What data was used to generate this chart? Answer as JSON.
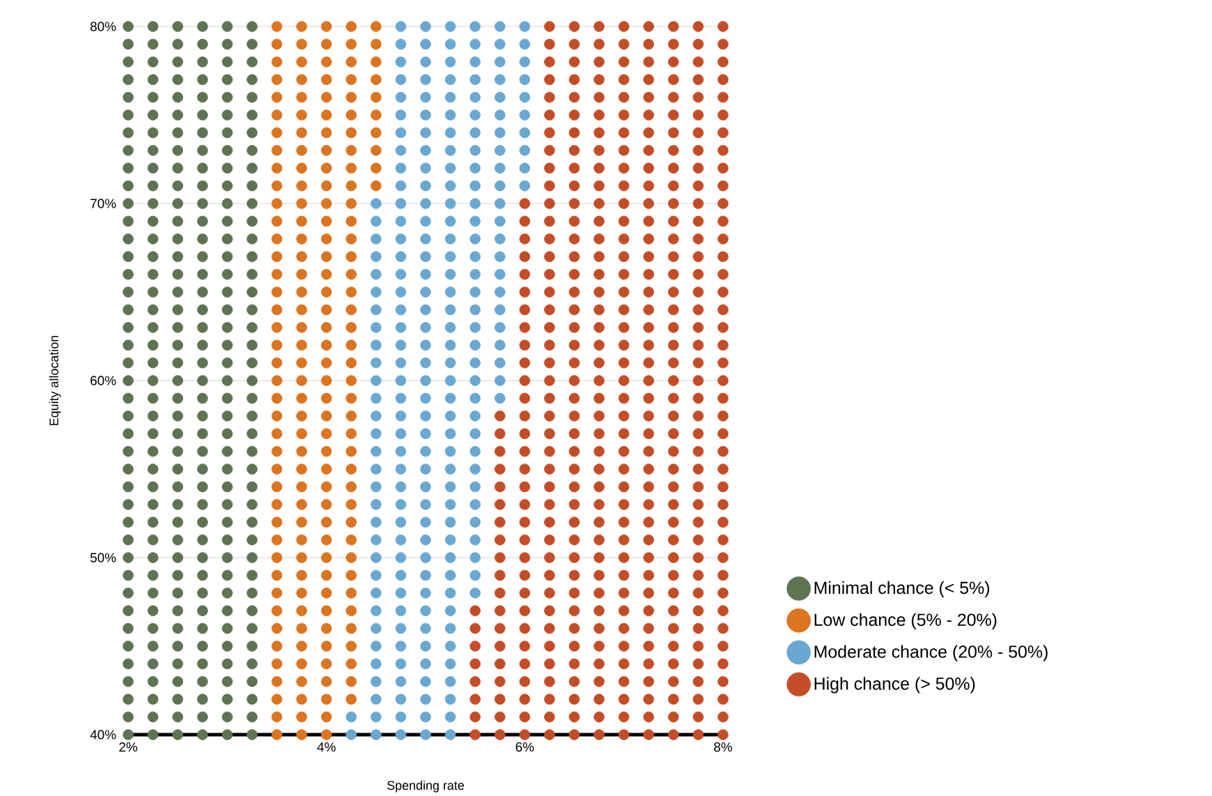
{
  "chart_data": {
    "type": "scatter",
    "xlabel": "Spending rate",
    "ylabel": "Equity allocation",
    "xlim": [
      2,
      8
    ],
    "ylim": [
      40,
      80
    ],
    "xticks": [
      {
        "value": 2,
        "label": "2%"
      },
      {
        "value": 4,
        "label": "4%"
      },
      {
        "value": 6,
        "label": "6%"
      },
      {
        "value": 8,
        "label": "8%"
      }
    ],
    "yticks": [
      {
        "value": 40,
        "label": "40%"
      },
      {
        "value": 50,
        "label": "50%"
      },
      {
        "value": 60,
        "label": "60%"
      },
      {
        "value": 70,
        "label": "70%"
      },
      {
        "value": 80,
        "label": "80%"
      }
    ],
    "grid": "y",
    "legend": "right",
    "marker": "circle",
    "series": [
      {
        "name": "Minimal chance (< 5%)",
        "color": "#5e7352",
        "x": [
          2,
          2.25,
          2.5,
          2.75,
          3,
          3.25,
          2,
          2.25,
          2.5,
          2.75,
          3,
          3.25,
          2,
          2.25,
          2.5,
          2.75,
          3,
          3.25,
          2,
          2.25,
          2.5,
          2.75,
          3,
          3.25,
          2,
          2.25,
          2.5,
          2.75,
          3,
          3.25,
          2,
          2.25,
          2.5,
          2.75,
          3,
          3.25,
          2,
          2.25,
          2.5,
          2.75,
          3,
          3.25,
          2,
          2.25,
          2.5,
          2.75,
          3,
          3.25,
          2,
          2.25,
          2.5,
          2.75,
          3,
          3.25,
          2,
          2.25,
          2.5,
          2.75,
          3,
          3.25,
          2,
          2.25,
          2.5,
          2.75,
          3,
          3.25,
          2,
          2.25,
          2.5,
          2.75,
          3,
          3.25,
          2,
          2.25,
          2.5,
          2.75,
          3,
          3.25,
          2,
          2.25,
          2.5,
          2.75,
          3,
          3.25,
          2,
          2.25,
          2.5,
          2.75,
          3,
          3.25,
          2,
          2.25,
          2.5,
          2.75,
          3,
          3.25,
          2,
          2.25,
          2.5,
          2.75,
          3,
          3.25,
          2,
          2.25,
          2.5,
          2.75,
          3,
          3.25,
          2,
          2.25,
          2.5,
          2.75,
          3,
          3.25,
          2,
          2.25,
          2.5,
          2.75,
          3,
          3.25,
          2,
          2.25,
          2.5,
          2.75,
          3,
          3.25,
          2,
          2.25,
          2.5,
          2.75,
          3,
          3.25,
          2,
          2.25,
          2.5,
          2.75,
          3,
          3.25,
          2,
          2.25,
          2.5,
          2.75,
          3,
          3.25,
          2,
          2.25,
          2.5,
          2.75,
          3,
          3.25,
          2,
          2.25,
          2.5,
          2.75,
          3,
          3.25,
          2,
          2.25,
          2.5,
          2.75,
          3,
          3.25,
          2,
          2.25,
          2.5,
          2.75,
          3,
          3.25,
          2,
          2.25,
          2.5,
          2.75,
          3,
          3.25,
          2,
          2.25,
          2.5,
          2.75,
          3,
          3.25,
          2,
          2.25,
          2.5,
          2.75,
          3,
          3.25,
          2,
          2.25,
          2.5,
          2.75,
          3,
          3.25,
          2,
          2.25,
          2.5,
          2.75,
          3,
          3.25,
          2,
          2.25,
          2.5,
          2.75,
          3,
          3.25,
          2,
          2.25,
          2.5,
          2.75,
          3,
          3.25,
          2,
          2.25,
          2.5,
          2.75,
          3,
          3.25,
          2,
          2.25,
          2.5,
          2.75,
          3,
          3.25,
          2,
          2.25,
          2.5,
          2.75,
          3,
          3.25,
          2,
          2.25,
          2.5,
          2.75,
          3,
          3.25,
          2,
          2.25,
          2.5,
          2.75,
          3,
          3.25,
          2,
          2.25,
          2.5,
          2.75,
          3,
          3.25
        ],
        "values": [
          80,
          80,
          80,
          80,
          80,
          80,
          79,
          79,
          79,
          79,
          79,
          79,
          78,
          78,
          78,
          78,
          78,
          78,
          77,
          77,
          77,
          77,
          77,
          77,
          76,
          76,
          76,
          76,
          76,
          76,
          75,
          75,
          75,
          75,
          75,
          75,
          74,
          74,
          74,
          74,
          74,
          74,
          73,
          73,
          73,
          73,
          73,
          73,
          72,
          72,
          72,
          72,
          72,
          72,
          71,
          71,
          71,
          71,
          71,
          71,
          70,
          70,
          70,
          70,
          70,
          70,
          69,
          69,
          69,
          69,
          69,
          69,
          68,
          68,
          68,
          68,
          68,
          68,
          67,
          67,
          67,
          67,
          67,
          67,
          66,
          66,
          66,
          66,
          66,
          66,
          65,
          65,
          65,
          65,
          65,
          65,
          64,
          64,
          64,
          64,
          64,
          64,
          63,
          63,
          63,
          63,
          63,
          63,
          62,
          62,
          62,
          62,
          62,
          62,
          61,
          61,
          61,
          61,
          61,
          61,
          60,
          60,
          60,
          60,
          60,
          60,
          59,
          59,
          59,
          59,
          59,
          59,
          58,
          58,
          58,
          58,
          58,
          58,
          57,
          57,
          57,
          57,
          57,
          57,
          56,
          56,
          56,
          56,
          56,
          56,
          55,
          55,
          55,
          55,
          55,
          55,
          54,
          54,
          54,
          54,
          54,
          54,
          53,
          53,
          53,
          53,
          53,
          53,
          52,
          52,
          52,
          52,
          52,
          52,
          51,
          51,
          51,
          51,
          51,
          51,
          50,
          50,
          50,
          50,
          50,
          50,
          49,
          49,
          49,
          49,
          49,
          49,
          48,
          48,
          48,
          48,
          48,
          48,
          47,
          47,
          47,
          47,
          47,
          47,
          46,
          46,
          46,
          46,
          46,
          46,
          45,
          45,
          45,
          45,
          45,
          45,
          44,
          44,
          44,
          44,
          44,
          44,
          43,
          43,
          43,
          43,
          43,
          43,
          42,
          42,
          42,
          42,
          42,
          42,
          41,
          41,
          41,
          41,
          41,
          41,
          40,
          40,
          40,
          40,
          40,
          40
        ]
      },
      {
        "name": "Low chance (5% - 20%)",
        "color": "#dc7420",
        "x": [
          3.5,
          3.75,
          4,
          4.25,
          4.5,
          3.5,
          3.75,
          4,
          4.25,
          4.5,
          3.5,
          3.75,
          4,
          4.25,
          4.5,
          3.5,
          3.75,
          4,
          4.25,
          4.5,
          3.5,
          3.75,
          4,
          4.25,
          4.5,
          3.5,
          3.75,
          4,
          4.25,
          4.5,
          3.5,
          3.75,
          4,
          4.25,
          4.5,
          3.5,
          3.75,
          4,
          4.25,
          4.5,
          3.5,
          3.75,
          4,
          4.25,
          4.5,
          3.5,
          3.75,
          4,
          4.25,
          4.5,
          3.5,
          3.75,
          4,
          4.25,
          3.5,
          3.75,
          4,
          4.25,
          3.5,
          3.75,
          4,
          4.25,
          3.5,
          3.75,
          4,
          4.25,
          3.5,
          3.75,
          4,
          4.25,
          3.5,
          3.75,
          4,
          4.25,
          3.5,
          3.75,
          4,
          4.25,
          3.5,
          3.75,
          4,
          4.25,
          3.5,
          3.75,
          4,
          4.25,
          3.5,
          3.75,
          4,
          4.25,
          3.5,
          3.75,
          4,
          4.25,
          3.5,
          3.75,
          4,
          4.25,
          3.5,
          3.75,
          4,
          4.25,
          3.5,
          3.75,
          4,
          4.25,
          3.5,
          3.75,
          4,
          4.25,
          3.5,
          3.75,
          4,
          4.25,
          3.5,
          3.75,
          4,
          4.25,
          3.5,
          3.75,
          4,
          4.25,
          3.5,
          3.75,
          4,
          4.25,
          3.5,
          3.75,
          4,
          4.25,
          3.5,
          3.75,
          4,
          4.25,
          3.5,
          3.75,
          4,
          4.25,
          3.5,
          3.75,
          4,
          4.25,
          3.5,
          3.75,
          4,
          4.25,
          3.5,
          3.75,
          4,
          4.25,
          3.5,
          3.75,
          4,
          4.25,
          3.5,
          3.75,
          4,
          4.25,
          3.5,
          3.75,
          4,
          4.25,
          3.5,
          3.75,
          4,
          4.25,
          3.5,
          3.75,
          4,
          3.5,
          3.75,
          4
        ],
        "values": [
          80,
          80,
          80,
          80,
          80,
          79,
          79,
          79,
          79,
          79,
          78,
          78,
          78,
          78,
          78,
          77,
          77,
          77,
          77,
          77,
          76,
          76,
          76,
          76,
          76,
          75,
          75,
          75,
          75,
          75,
          74,
          74,
          74,
          74,
          74,
          73,
          73,
          73,
          73,
          73,
          72,
          72,
          72,
          72,
          72,
          71,
          71,
          71,
          71,
          71,
          70,
          70,
          70,
          70,
          69,
          69,
          69,
          69,
          68,
          68,
          68,
          68,
          67,
          67,
          67,
          67,
          66,
          66,
          66,
          66,
          65,
          65,
          65,
          65,
          64,
          64,
          64,
          64,
          63,
          63,
          63,
          63,
          62,
          62,
          62,
          62,
          61,
          61,
          61,
          61,
          60,
          60,
          60,
          60,
          59,
          59,
          59,
          59,
          58,
          58,
          58,
          58,
          57,
          57,
          57,
          57,
          56,
          56,
          56,
          56,
          55,
          55,
          55,
          55,
          54,
          54,
          54,
          54,
          53,
          53,
          53,
          53,
          52,
          52,
          52,
          52,
          51,
          51,
          51,
          51,
          50,
          50,
          50,
          50,
          49,
          49,
          49,
          49,
          48,
          48,
          48,
          48,
          47,
          47,
          47,
          47,
          46,
          46,
          46,
          46,
          45,
          45,
          45,
          45,
          44,
          44,
          44,
          44,
          43,
          43,
          43,
          43,
          42,
          42,
          42,
          42,
          41,
          41,
          41,
          40,
          40,
          40
        ]
      },
      {
        "name": "Moderate chance (20% - 50%)",
        "color": "#6aa8d2",
        "x": [
          4.75,
          5,
          5.25,
          5.5,
          5.75,
          6,
          4.75,
          5,
          5.25,
          5.5,
          5.75,
          6,
          4.75,
          5,
          5.25,
          5.5,
          5.75,
          6,
          4.75,
          5,
          5.25,
          5.5,
          5.75,
          6,
          4.75,
          5,
          5.25,
          5.5,
          5.75,
          6,
          4.75,
          5,
          5.25,
          5.5,
          5.75,
          6,
          4.75,
          5,
          5.25,
          5.5,
          5.75,
          6,
          4.75,
          5,
          5.25,
          5.5,
          5.75,
          6,
          4.75,
          5,
          5.25,
          5.5,
          5.75,
          6,
          4.75,
          5,
          5.25,
          5.5,
          5.75,
          6,
          4.5,
          4.75,
          5,
          5.25,
          5.5,
          5.75,
          4.5,
          4.75,
          5,
          5.25,
          5.5,
          5.75,
          4.5,
          4.75,
          5,
          5.25,
          5.5,
          5.75,
          4.5,
          4.75,
          5,
          5.25,
          5.5,
          5.75,
          4.5,
          4.75,
          5,
          5.25,
          5.5,
          5.75,
          4.5,
          4.75,
          5,
          5.25,
          5.5,
          5.75,
          4.5,
          4.75,
          5,
          5.25,
          5.5,
          5.75,
          4.5,
          4.75,
          5,
          5.25,
          5.5,
          5.75,
          4.5,
          4.75,
          5,
          5.25,
          5.5,
          5.75,
          4.5,
          4.75,
          5,
          5.25,
          5.5,
          5.75,
          4.5,
          4.75,
          5,
          5.25,
          5.5,
          5.75,
          4.5,
          4.75,
          5,
          5.25,
          5.5,
          5.75,
          4.5,
          4.75,
          5,
          5.25,
          5.5,
          4.5,
          4.75,
          5,
          5.25,
          5.5,
          4.5,
          4.75,
          5,
          5.25,
          5.5,
          4.5,
          4.75,
          5,
          5.25,
          5.5,
          4.5,
          4.75,
          5,
          5.25,
          5.5,
          4.5,
          4.75,
          5,
          5.25,
          5.5,
          4.5,
          4.75,
          5,
          5.25,
          5.5,
          4.5,
          4.75,
          5,
          5.25,
          5.5,
          4.5,
          4.75,
          5,
          5.25,
          5.5,
          4.5,
          4.75,
          5,
          5.25,
          5.5,
          4.5,
          4.75,
          5,
          5.25,
          5.5,
          4.5,
          4.75,
          5,
          5.25,
          4.5,
          4.75,
          5,
          5.25,
          4.5,
          4.75,
          5,
          5.25,
          4.5,
          4.75,
          5,
          5.25,
          4.5,
          4.75,
          5,
          5.25,
          4.5,
          4.75,
          5,
          5.25,
          4.25,
          4.5,
          4.75,
          5,
          5.25,
          4.25,
          4.5,
          4.75,
          5,
          5.25
        ],
        "values": [
          80,
          80,
          80,
          80,
          80,
          80,
          79,
          79,
          79,
          79,
          79,
          79,
          78,
          78,
          78,
          78,
          78,
          78,
          77,
          77,
          77,
          77,
          77,
          77,
          76,
          76,
          76,
          76,
          76,
          76,
          75,
          75,
          75,
          75,
          75,
          75,
          74,
          74,
          74,
          74,
          74,
          74,
          73,
          73,
          73,
          73,
          73,
          73,
          72,
          72,
          72,
          72,
          72,
          72,
          71,
          71,
          71,
          71,
          71,
          71,
          70,
          70,
          70,
          70,
          70,
          70,
          69,
          69,
          69,
          69,
          69,
          69,
          68,
          68,
          68,
          68,
          68,
          68,
          67,
          67,
          67,
          67,
          67,
          67,
          66,
          66,
          66,
          66,
          66,
          66,
          65,
          65,
          65,
          65,
          65,
          65,
          64,
          64,
          64,
          64,
          64,
          64,
          63,
          63,
          63,
          63,
          63,
          63,
          62,
          62,
          62,
          62,
          62,
          62,
          61,
          61,
          61,
          61,
          61,
          61,
          60,
          60,
          60,
          60,
          60,
          60,
          59,
          59,
          59,
          59,
          59,
          59,
          58,
          58,
          58,
          58,
          58,
          57,
          57,
          57,
          57,
          57,
          56,
          56,
          56,
          56,
          56,
          55,
          55,
          55,
          55,
          55,
          54,
          54,
          54,
          54,
          54,
          53,
          53,
          53,
          53,
          53,
          52,
          52,
          52,
          52,
          52,
          51,
          51,
          51,
          51,
          51,
          50,
          50,
          50,
          50,
          50,
          49,
          49,
          49,
          49,
          49,
          48,
          48,
          48,
          48,
          48,
          47,
          47,
          47,
          47,
          46,
          46,
          46,
          46,
          45,
          45,
          45,
          45,
          44,
          44,
          44,
          44,
          43,
          43,
          43,
          43,
          42,
          42,
          42,
          42,
          41,
          41,
          41,
          41,
          41,
          40,
          40,
          40,
          40,
          40
        ]
      },
      {
        "name": "High chance (> 50%)",
        "color": "#c44d27",
        "x": [
          6.25,
          6.5,
          6.75,
          7,
          7.25,
          7.5,
          7.75,
          8,
          6.25,
          6.5,
          6.75,
          7,
          7.25,
          7.5,
          7.75,
          8,
          6.25,
          6.5,
          6.75,
          7,
          7.25,
          7.5,
          7.75,
          8,
          6.25,
          6.5,
          6.75,
          7,
          7.25,
          7.5,
          7.75,
          8,
          6.25,
          6.5,
          6.75,
          7,
          7.25,
          7.5,
          7.75,
          8,
          6.25,
          6.5,
          6.75,
          7,
          7.25,
          7.5,
          7.75,
          8,
          6.25,
          6.5,
          6.75,
          7,
          7.25,
          7.5,
          7.75,
          8,
          6.25,
          6.5,
          6.75,
          7,
          7.25,
          7.5,
          7.75,
          8,
          6.25,
          6.5,
          6.75,
          7,
          7.25,
          7.5,
          7.75,
          8,
          6.25,
          6.5,
          6.75,
          7,
          7.25,
          7.5,
          7.75,
          8,
          6,
          6.25,
          6.5,
          6.75,
          7,
          7.25,
          7.5,
          7.75,
          8,
          6,
          6.25,
          6.5,
          6.75,
          7,
          7.25,
          7.5,
          7.75,
          8,
          6,
          6.25,
          6.5,
          6.75,
          7,
          7.25,
          7.5,
          7.75,
          8,
          6,
          6.25,
          6.5,
          6.75,
          7,
          7.25,
          7.5,
          7.75,
          8,
          6,
          6.25,
          6.5,
          6.75,
          7,
          7.25,
          7.5,
          7.75,
          8,
          6,
          6.25,
          6.5,
          6.75,
          7,
          7.25,
          7.5,
          7.75,
          8,
          6,
          6.25,
          6.5,
          6.75,
          7,
          7.25,
          7.5,
          7.75,
          8,
          6,
          6.25,
          6.5,
          6.75,
          7,
          7.25,
          7.5,
          7.75,
          8,
          6,
          6.25,
          6.5,
          6.75,
          7,
          7.25,
          7.5,
          7.75,
          8,
          6,
          6.25,
          6.5,
          6.75,
          7,
          7.25,
          7.5,
          7.75,
          8,
          6,
          6.25,
          6.5,
          6.75,
          7,
          7.25,
          7.5,
          7.75,
          8,
          6,
          6.25,
          6.5,
          6.75,
          7,
          7.25,
          7.5,
          7.75,
          8,
          5.75,
          6,
          6.25,
          6.5,
          6.75,
          7,
          7.25,
          7.5,
          7.75,
          8,
          5.75,
          6,
          6.25,
          6.5,
          6.75,
          7,
          7.25,
          7.5,
          7.75,
          8,
          5.75,
          6,
          6.25,
          6.5,
          6.75,
          7,
          7.25,
          7.5,
          7.75,
          8,
          5.75,
          6,
          6.25,
          6.5,
          6.75,
          7,
          7.25,
          7.5,
          7.75,
          8,
          5.75,
          6,
          6.25,
          6.5,
          6.75,
          7,
          7.25,
          7.5,
          7.75,
          8,
          5.75,
          6,
          6.25,
          6.5,
          6.75,
          7,
          7.25,
          7.5,
          7.75,
          8,
          5.75,
          6,
          6.25,
          6.5,
          6.75,
          7,
          7.25,
          7.5,
          7.75,
          8,
          5.75,
          6,
          6.25,
          6.5,
          6.75,
          7,
          7.25,
          7.5,
          7.75,
          8,
          5.75,
          6,
          6.25,
          6.5,
          6.75,
          7,
          7.25,
          7.5,
          7.75,
          8,
          5.75,
          6,
          6.25,
          6.5,
          6.75,
          7,
          7.25,
          7.5,
          7.75,
          8,
          5.75,
          6,
          6.25,
          6.5,
          6.75,
          7,
          7.25,
          7.5,
          7.75,
          8,
          5.5,
          5.75,
          6,
          6.25,
          6.5,
          6.75,
          7,
          7.25,
          7.5,
          7.75,
          8,
          5.5,
          5.75,
          6,
          6.25,
          6.5,
          6.75,
          7,
          7.25,
          7.5,
          7.75,
          8,
          5.5,
          5.75,
          6,
          6.25,
          6.5,
          6.75,
          7,
          7.25,
          7.5,
          7.75,
          8,
          5.5,
          5.75,
          6,
          6.25,
          6.5,
          6.75,
          7,
          7.25,
          7.5,
          7.75,
          8,
          5.5,
          5.75,
          6,
          6.25,
          6.5,
          6.75,
          7,
          7.25,
          7.5,
          7.75,
          8,
          5.5,
          5.75,
          6,
          6.25,
          6.5,
          6.75,
          7,
          7.25,
          7.5,
          7.75,
          8,
          5.5,
          5.75,
          6,
          6.25,
          6.5,
          6.75,
          7,
          7.25,
          7.5,
          7.75,
          8,
          5.5,
          5.75,
          6,
          6.25,
          6.5,
          6.75,
          7,
          7.25,
          7.5,
          7.75,
          8
        ],
        "values": [
          80,
          80,
          80,
          80,
          80,
          80,
          80,
          80,
          79,
          79,
          79,
          79,
          79,
          79,
          79,
          79,
          78,
          78,
          78,
          78,
          78,
          78,
          78,
          78,
          77,
          77,
          77,
          77,
          77,
          77,
          77,
          77,
          76,
          76,
          76,
          76,
          76,
          76,
          76,
          76,
          75,
          75,
          75,
          75,
          75,
          75,
          75,
          75,
          74,
          74,
          74,
          74,
          74,
          74,
          74,
          74,
          73,
          73,
          73,
          73,
          73,
          73,
          73,
          73,
          72,
          72,
          72,
          72,
          72,
          72,
          72,
          72,
          71,
          71,
          71,
          71,
          71,
          71,
          71,
          71,
          70,
          70,
          70,
          70,
          70,
          70,
          70,
          70,
          70,
          69,
          69,
          69,
          69,
          69,
          69,
          69,
          69,
          69,
          68,
          68,
          68,
          68,
          68,
          68,
          68,
          68,
          68,
          67,
          67,
          67,
          67,
          67,
          67,
          67,
          67,
          67,
          66,
          66,
          66,
          66,
          66,
          66,
          66,
          66,
          66,
          65,
          65,
          65,
          65,
          65,
          65,
          65,
          65,
          65,
          64,
          64,
          64,
          64,
          64,
          64,
          64,
          64,
          64,
          63,
          63,
          63,
          63,
          63,
          63,
          63,
          63,
          63,
          62,
          62,
          62,
          62,
          62,
          62,
          62,
          62,
          62,
          61,
          61,
          61,
          61,
          61,
          61,
          61,
          61,
          61,
          60,
          60,
          60,
          60,
          60,
          60,
          60,
          60,
          60,
          59,
          59,
          59,
          59,
          59,
          59,
          59,
          59,
          59,
          58,
          58,
          58,
          58,
          58,
          58,
          58,
          58,
          58,
          58,
          57,
          57,
          57,
          57,
          57,
          57,
          57,
          57,
          57,
          57,
          56,
          56,
          56,
          56,
          56,
          56,
          56,
          56,
          56,
          56,
          55,
          55,
          55,
          55,
          55,
          55,
          55,
          55,
          55,
          55,
          54,
          54,
          54,
          54,
          54,
          54,
          54,
          54,
          54,
          54,
          53,
          53,
          53,
          53,
          53,
          53,
          53,
          53,
          53,
          53,
          52,
          52,
          52,
          52,
          52,
          52,
          52,
          52,
          52,
          52,
          51,
          51,
          51,
          51,
          51,
          51,
          51,
          51,
          51,
          51,
          50,
          50,
          50,
          50,
          50,
          50,
          50,
          50,
          50,
          50,
          49,
          49,
          49,
          49,
          49,
          49,
          49,
          49,
          49,
          49,
          48,
          48,
          48,
          48,
          48,
          48,
          48,
          48,
          48,
          48,
          47,
          47,
          47,
          47,
          47,
          47,
          47,
          47,
          47,
          47,
          47,
          46,
          46,
          46,
          46,
          46,
          46,
          46,
          46,
          46,
          46,
          46,
          45,
          45,
          45,
          45,
          45,
          45,
          45,
          45,
          45,
          45,
          45,
          44,
          44,
          44,
          44,
          44,
          44,
          44,
          44,
          44,
          44,
          44,
          43,
          43,
          43,
          43,
          43,
          43,
          43,
          43,
          43,
          43,
          43,
          42,
          42,
          42,
          42,
          42,
          42,
          42,
          42,
          42,
          42,
          42,
          41,
          41,
          41,
          41,
          41,
          41,
          41,
          41,
          41,
          41,
          41,
          40,
          40,
          40,
          40,
          40,
          40,
          40,
          40,
          40,
          40,
          40
        ]
      }
    ]
  }
}
